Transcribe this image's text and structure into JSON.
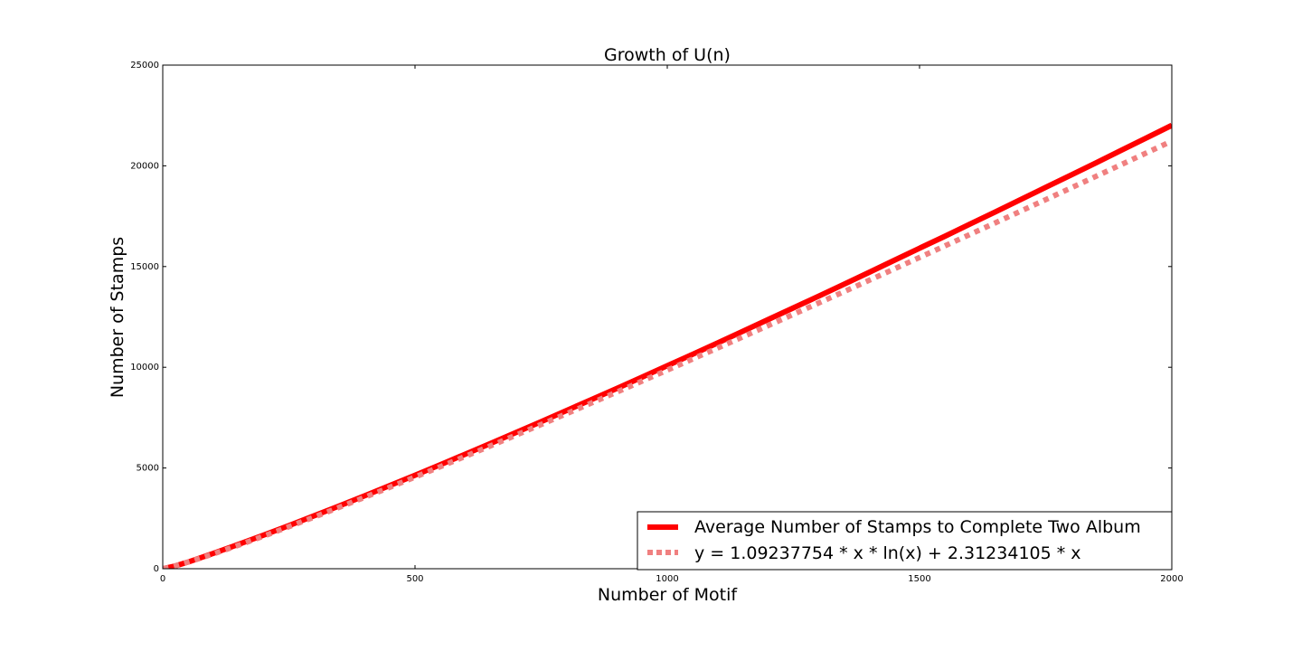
{
  "chart_data": {
    "type": "line",
    "title": "Growth of U(n)",
    "xlabel": "Number of Motif",
    "ylabel": "Number of Stamps",
    "xlim": [
      0,
      2000
    ],
    "ylim": [
      0,
      25000
    ],
    "xticks": [
      0,
      500,
      1000,
      1500,
      2000
    ],
    "yticks": [
      0,
      5000,
      10000,
      15000,
      20000,
      25000
    ],
    "xtick_labels": [
      "0",
      "500",
      "1000",
      "1500",
      "2000"
    ],
    "ytick_labels": [
      "0",
      "5000",
      "10000",
      "15000",
      "20000",
      "25000"
    ],
    "grid": false,
    "legend_position": "lower-right",
    "series": [
      {
        "name": "Average Number of Stamps to Complete Two Album",
        "color": "#ff0000",
        "style": "solid",
        "x": [
          1,
          25,
          50,
          100,
          150,
          200,
          250,
          300,
          350,
          400,
          450,
          500,
          550,
          600,
          650,
          700,
          750,
          800,
          850,
          900,
          950,
          1000,
          1050,
          1100,
          1150,
          1200,
          1250,
          1300,
          1350,
          1400,
          1450,
          1500,
          1550,
          1600,
          1650,
          1700,
          1750,
          1800,
          1850,
          1900,
          1950,
          2000
        ],
        "y": [
          3,
          140,
          330,
          760,
          1210,
          1670,
          2140,
          2630,
          3120,
          3620,
          4130,
          4640,
          5160,
          5690,
          6220,
          6760,
          7300,
          7850,
          8400,
          8950,
          9510,
          10080,
          10640,
          11210,
          11790,
          12370,
          12950,
          13530,
          14120,
          14710,
          15310,
          15910,
          16500,
          17110,
          17710,
          18320,
          18930,
          19540,
          20150,
          20770,
          21390,
          22010
        ]
      },
      {
        "name": "y = 1.09237754 * x * ln(x) + 2.31234105 * x",
        "color": "#f08080",
        "style": "dotted",
        "formula": "y = 1.09237754 * x * ln(x) + 2.31234105 * x",
        "a": 1.09237754,
        "b": 2.31234105
      }
    ]
  }
}
